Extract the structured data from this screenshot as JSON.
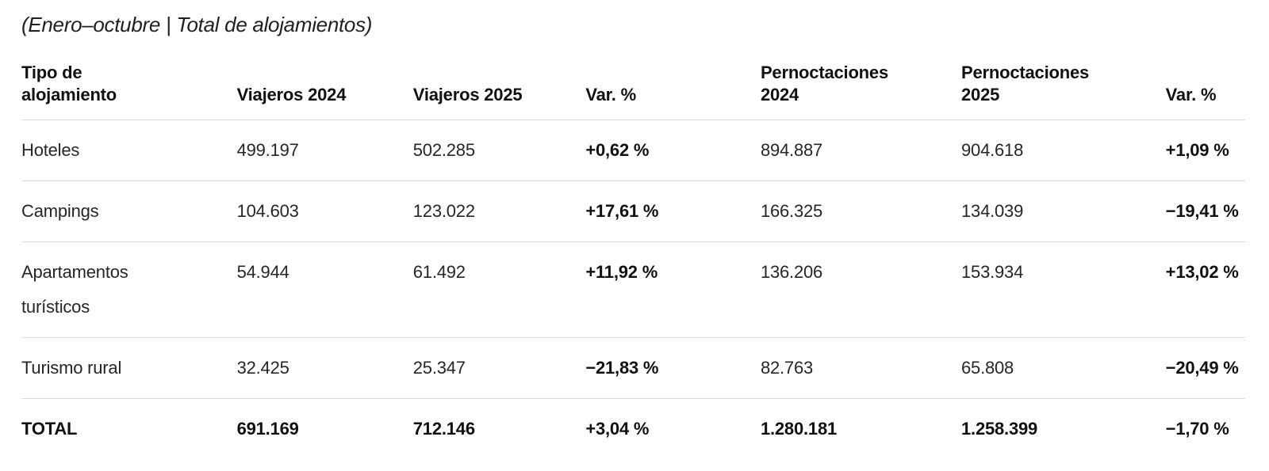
{
  "title": "(Enero–octubre | Total de alojamientos)",
  "chart_data": {
    "type": "table",
    "title": "(Enero–octubre | Total de alojamientos)",
    "columns": [
      "Tipo de alojamiento",
      "Viajeros 2024",
      "Viajeros 2025",
      "Var. %",
      "Pernoctaciones 2024",
      "Pernoctaciones 2025",
      "Var. %"
    ],
    "rows": [
      [
        "Hoteles",
        "499.197",
        "502.285",
        "+0,62 %",
        "894.887",
        "904.618",
        "+1,09 %"
      ],
      [
        "Campings",
        "104.603",
        "123.022",
        "+17,61 %",
        "166.325",
        "134.039",
        "−19,41 %"
      ],
      [
        "Apartamentos turísticos",
        "54.944",
        "61.492",
        "+11,92 %",
        "136.206",
        "153.934",
        "+13,02 %"
      ],
      [
        "Turismo rural",
        "32.425",
        "25.347",
        "−21,83 %",
        "82.763",
        "65.808",
        "−20,49 %"
      ],
      [
        "TOTAL",
        "691.169",
        "712.146",
        "+3,04 %",
        "1.280.181",
        "1.258.399",
        "−1,70 %"
      ]
    ]
  }
}
